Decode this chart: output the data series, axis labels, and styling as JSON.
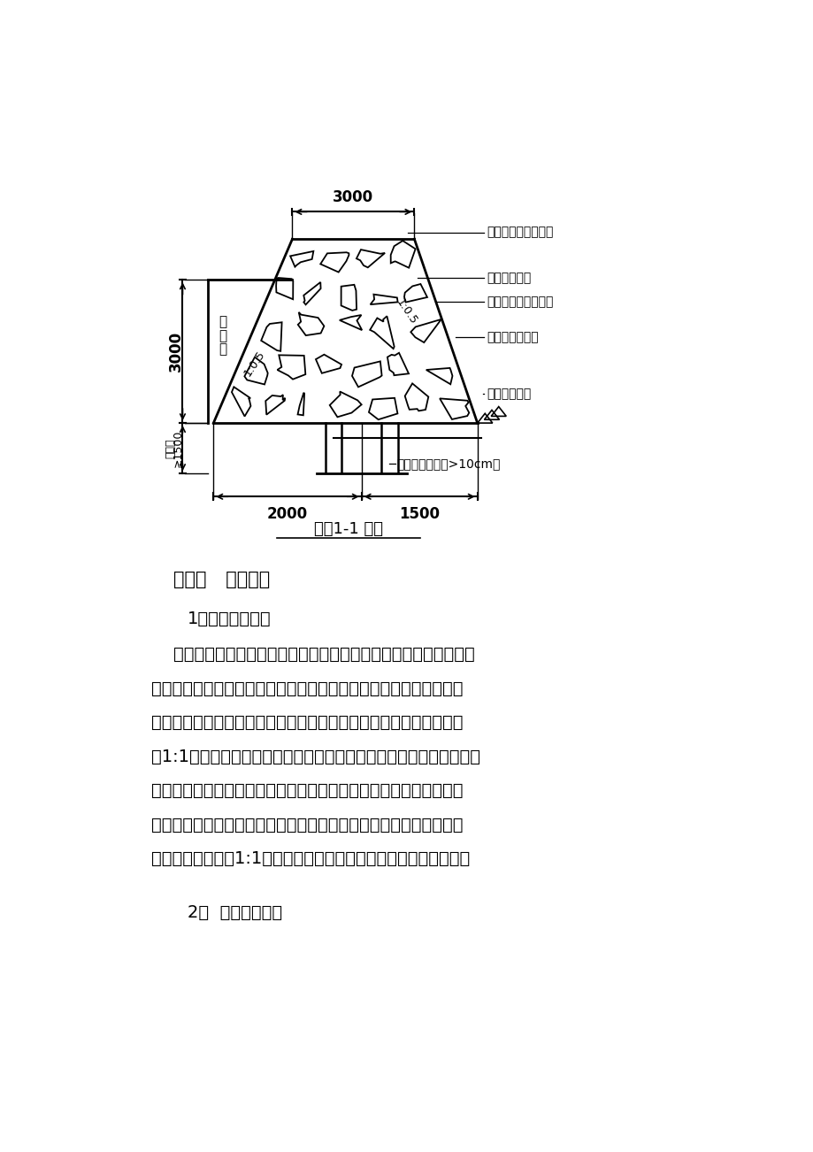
{
  "bg_color": "#ffffff",
  "title_diagram": "围堰1-1 剖面",
  "section_header": "（三）   堰塘清淤",
  "subsection1": "1、清淤施工方案",
  "subsection2": "2、  清淤施工工艺",
  "body_line0": "    由于工期紧，堰塘淤泥呈流塑状，稳定性极差，难以按正常施工。",
  "body_line1": "针对此难点，经我部相关人员研究讨论，决定采取拌干土法清淤方案",
  "body_line2": "先进行排水；待水充分排干后，从一侧倒干土与淤泥进行拌合（比例",
  "body_line3": "为1:1），使流塑状淤泥变为塑状，便于机械施工；清完一段淤泥后，",
  "body_line4": "及时回填山皮土，压实，形成一条临时便道，以利于后续施工；逐段",
  "body_line5": "向前推进，完成清淤；回填山皮土。此方案关键在于把流塑状淤泥变",
  "body_line6": "为塑状，因此若按1:1比例未能达到要求时，需适当增大干土比例。",
  "label_tsubao": "土袋包（编织袋灌土",
  "label_shuimiao": "堰塘水面标高",
  "label_taiyang": "外铺太阳布一道防水",
  "label_tuzhuang": "外堆土袋包一道",
  "label_suishi": "碎石封防水布",
  "label_zhuang": "双排木桩（桩径>10cm）",
  "label_beishui": "背\n水\n面",
  "label_slope_l": "1:0.5",
  "label_slope_r": "1:0.5",
  "dim_top": "3000",
  "dim_left": "3000",
  "dim_bottom_l": "2000",
  "dim_bottom_r": "1500",
  "dim_depth": "≥1500",
  "dim_depth_label": "入土深"
}
